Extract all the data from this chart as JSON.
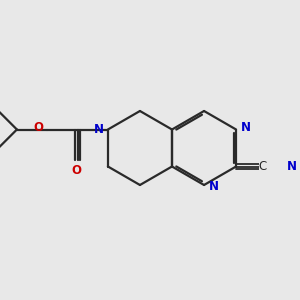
{
  "bg_color": "#e8e8e8",
  "bond_color": "#2a2a2a",
  "N_color": "#0000cc",
  "O_color": "#cc0000",
  "lw": 1.6,
  "dbo": 0.018,
  "fs": 8.5,
  "fs_small": 7.5
}
